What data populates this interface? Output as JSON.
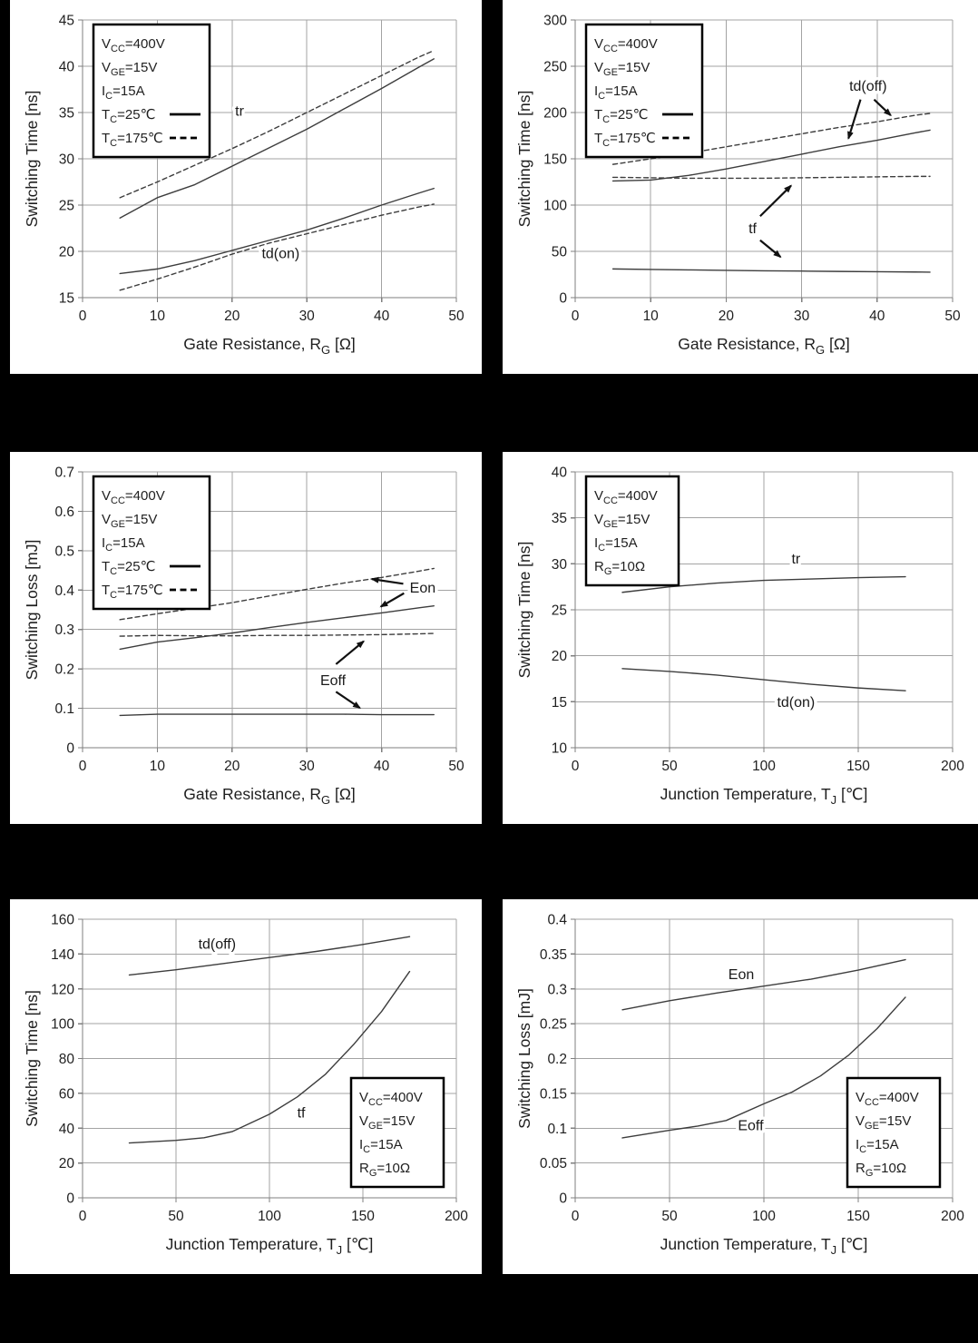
{
  "page": {
    "background": "#000000",
    "panel_background": "#ffffff"
  },
  "style": {
    "grid_color": "#a3a3a3",
    "axis_color": "#7f7f7f",
    "tick_text_color": "#1f1f1f",
    "curve_color": "#3d3d3d",
    "annotation_color": "#1a1a1a",
    "arrow_color": "#111111",
    "legend_border_color": "#000000",
    "legend_fill": "#ffffff"
  },
  "chart_data": [
    {
      "id": "switching-time-vs-rg-turn-on",
      "type": "line",
      "ylabel": "Switching Time [ns]",
      "xlabel": {
        "pre": "Gate Resistance, R",
        "sub": "G",
        "post": " [Ω]"
      },
      "xlim": [
        0,
        50
      ],
      "ylim": [
        15,
        45
      ],
      "xticks": [
        0,
        10,
        20,
        30,
        40,
        50
      ],
      "xtick_labels": [
        "0",
        "10",
        "20",
        "30",
        "40",
        "50"
      ],
      "yticks": [
        15,
        20,
        25,
        30,
        35,
        40,
        45
      ],
      "ytick_labels": [
        "15",
        "20",
        "25",
        "30",
        "35",
        "40",
        "45"
      ],
      "grid": true,
      "legend": {
        "position": "top-left",
        "lines": [
          {
            "pre": "V",
            "sub": "CC",
            "post": "=400V"
          },
          {
            "pre": "V",
            "sub": "GE",
            "post": "=15V"
          },
          {
            "pre": "I",
            "sub": "C",
            "post": "=15A"
          },
          {
            "pre": "T",
            "sub": "C",
            "post": "=25℃",
            "sample": "solid"
          },
          {
            "pre": "T",
            "sub": "C",
            "post": "=175℃",
            "sample": "dashed"
          }
        ]
      },
      "series": [
        {
          "id": "tr-tc25",
          "name": "tr @ Tc=25C",
          "style": "solid",
          "x": [
            5,
            10,
            15,
            20,
            25,
            30,
            35,
            40,
            45,
            47
          ],
          "y": [
            23.6,
            25.8,
            27.2,
            29.2,
            31.2,
            33.2,
            35.4,
            37.6,
            39.9,
            40.8
          ]
        },
        {
          "id": "tr-tc175",
          "name": "tr @ Tc=175C",
          "style": "dashed",
          "x": [
            5,
            10,
            15,
            20,
            25,
            30,
            35,
            40,
            45,
            47
          ],
          "y": [
            25.8,
            27.5,
            29.3,
            31.1,
            33.0,
            35.0,
            37.0,
            39.0,
            41.0,
            41.7
          ]
        },
        {
          "id": "tdon-tc25",
          "name": "td(on) @ Tc=25C",
          "style": "solid",
          "x": [
            5,
            10,
            15,
            20,
            25,
            30,
            35,
            40,
            45,
            47
          ],
          "y": [
            17.6,
            18.1,
            19.0,
            20.1,
            21.2,
            22.3,
            23.6,
            25.0,
            26.3,
            26.8
          ]
        },
        {
          "id": "tdon-tc175",
          "name": "td(on) @ Tc=175C",
          "style": "dashed",
          "x": [
            5,
            10,
            15,
            20,
            25,
            30,
            35,
            40,
            45,
            47
          ],
          "y": [
            15.8,
            17.0,
            18.3,
            19.7,
            20.9,
            21.9,
            22.9,
            23.9,
            24.8,
            25.1
          ]
        }
      ],
      "annotations": [
        {
          "text": "tr",
          "x": 21,
          "y": 35.2
        },
        {
          "text": "td(on)",
          "x": 26.5,
          "y": 19.8
        }
      ],
      "arrows": []
    },
    {
      "id": "switching-time-vs-rg-turn-off",
      "type": "line",
      "ylabel": "Switching Time [ns]",
      "xlabel": {
        "pre": "Gate Resistance, R",
        "sub": "G",
        "post": " [Ω]"
      },
      "xlim": [
        0,
        50
      ],
      "ylim": [
        0,
        300
      ],
      "xticks": [
        0,
        10,
        20,
        30,
        40,
        50
      ],
      "xtick_labels": [
        "0",
        "10",
        "20",
        "30",
        "40",
        "50"
      ],
      "yticks": [
        0,
        50,
        100,
        150,
        200,
        250,
        300
      ],
      "ytick_labels": [
        "0",
        "50",
        "100",
        "150",
        "200",
        "250",
        "300"
      ],
      "grid": true,
      "legend": {
        "position": "top-left",
        "lines": [
          {
            "pre": "V",
            "sub": "CC",
            "post": "=400V"
          },
          {
            "pre": "V",
            "sub": "GE",
            "post": "=15V"
          },
          {
            "pre": "I",
            "sub": "C",
            "post": "=15A"
          },
          {
            "pre": "T",
            "sub": "C",
            "post": "=25℃",
            "sample": "solid"
          },
          {
            "pre": "T",
            "sub": "C",
            "post": "=175℃",
            "sample": "dashed"
          }
        ]
      },
      "series": [
        {
          "id": "tdoff-tc25",
          "name": "td(off) @ Tc=25C",
          "style": "solid",
          "x": [
            5,
            10,
            15,
            20,
            25,
            30,
            35,
            40,
            45,
            47
          ],
          "y": [
            126,
            127,
            132,
            139,
            147,
            155,
            163,
            170,
            178,
            181
          ]
        },
        {
          "id": "tdoff-tc175",
          "name": "td(off) @ Tc=175C",
          "style": "dashed",
          "x": [
            5,
            10,
            15,
            20,
            25,
            30,
            35,
            40,
            45,
            47
          ],
          "y": [
            144,
            150,
            156,
            163,
            170,
            177,
            184,
            190,
            197,
            199
          ]
        },
        {
          "id": "tf-tc175",
          "name": "tf @ Tc=175C",
          "style": "dashed",
          "x": [
            5,
            10,
            15,
            20,
            25,
            30,
            35,
            40,
            45,
            47
          ],
          "y": [
            130,
            129.5,
            129,
            129,
            129,
            129.5,
            130,
            130.5,
            131,
            131
          ]
        },
        {
          "id": "tf-tc25",
          "name": "tf @ Tc=25C",
          "style": "solid",
          "x": [
            5,
            10,
            15,
            20,
            25,
            30,
            35,
            40,
            45,
            47
          ],
          "y": [
            31,
            30.5,
            30,
            29.5,
            29,
            28.7,
            28.3,
            28,
            27.7,
            27.5
          ]
        }
      ],
      "annotations": [
        {
          "text": "td(off)",
          "x": 38.8,
          "y": 229
        },
        {
          "text": "tf",
          "x": 23.5,
          "y": 75
        }
      ],
      "arrows": [
        {
          "x1": 37.8,
          "y1": 214,
          "x2": 36.2,
          "y2": 172
        },
        {
          "x1": 39.6,
          "y1": 214,
          "x2": 41.8,
          "y2": 197
        },
        {
          "x1": 24.5,
          "y1": 88,
          "x2": 28.6,
          "y2": 121
        },
        {
          "x1": 24.5,
          "y1": 62,
          "x2": 27.2,
          "y2": 44
        }
      ]
    },
    {
      "id": "switching-loss-vs-rg",
      "type": "line",
      "ylabel": "Switching Loss [mJ]",
      "xlabel": {
        "pre": "Gate Resistance, R",
        "sub": "G",
        "post": " [Ω]"
      },
      "xlim": [
        0,
        50
      ],
      "ylim": [
        0,
        0.7
      ],
      "xticks": [
        0,
        10,
        20,
        30,
        40,
        50
      ],
      "xtick_labels": [
        "0",
        "10",
        "20",
        "30",
        "40",
        "50"
      ],
      "yticks": [
        0,
        0.1,
        0.2,
        0.3,
        0.4,
        0.5,
        0.6,
        0.7
      ],
      "ytick_labels": [
        "0",
        "0.1",
        "0.2",
        "0.3",
        "0.4",
        "0.5",
        "0.6",
        "0.7"
      ],
      "grid": true,
      "legend": {
        "position": "top-left",
        "lines": [
          {
            "pre": "V",
            "sub": "CC",
            "post": "=400V"
          },
          {
            "pre": "V",
            "sub": "GE",
            "post": "=15V"
          },
          {
            "pre": "I",
            "sub": "C",
            "post": "=15A"
          },
          {
            "pre": "T",
            "sub": "C",
            "post": "=25℃",
            "sample": "solid"
          },
          {
            "pre": "T",
            "sub": "C",
            "post": "=175℃",
            "sample": "dashed"
          }
        ]
      },
      "series": [
        {
          "id": "eon-tc175",
          "name": "Eon @ Tc=175C",
          "style": "dashed",
          "x": [
            5,
            10,
            15,
            20,
            25,
            30,
            35,
            40,
            45,
            47
          ],
          "y": [
            0.325,
            0.34,
            0.354,
            0.368,
            0.385,
            0.402,
            0.418,
            0.432,
            0.448,
            0.455
          ]
        },
        {
          "id": "eon-tc25",
          "name": "Eon @ Tc=25C",
          "style": "solid",
          "x": [
            5,
            10,
            15,
            20,
            25,
            30,
            35,
            40,
            45,
            47
          ],
          "y": [
            0.25,
            0.268,
            0.279,
            0.291,
            0.305,
            0.318,
            0.33,
            0.342,
            0.355,
            0.36
          ]
        },
        {
          "id": "eoff-tc175",
          "name": "Eoff @ Tc=175C",
          "style": "dashed",
          "x": [
            5,
            10,
            15,
            20,
            25,
            30,
            35,
            40,
            45,
            47
          ],
          "y": [
            0.283,
            0.285,
            0.284,
            0.284,
            0.285,
            0.285,
            0.286,
            0.287,
            0.289,
            0.29
          ]
        },
        {
          "id": "eoff-tc25",
          "name": "Eoff @ Tc=25C",
          "style": "solid",
          "x": [
            5,
            10,
            15,
            20,
            25,
            30,
            35,
            40,
            45,
            47
          ],
          "y": [
            0.082,
            0.085,
            0.085,
            0.085,
            0.085,
            0.085,
            0.085,
            0.084,
            0.084,
            0.084
          ]
        }
      ],
      "annotations": [
        {
          "text": "Eon",
          "x": 45.5,
          "y": 0.406
        },
        {
          "text": "Eoff",
          "x": 33.5,
          "y": 0.172
        }
      ],
      "arrows": [
        {
          "x1": 42.9,
          "y1": 0.416,
          "x2": 38.7,
          "y2": 0.428
        },
        {
          "x1": 43.0,
          "y1": 0.392,
          "x2": 39.9,
          "y2": 0.358
        },
        {
          "x1": 33.9,
          "y1": 0.212,
          "x2": 37.6,
          "y2": 0.27
        },
        {
          "x1": 33.9,
          "y1": 0.142,
          "x2": 37.1,
          "y2": 0.101
        }
      ]
    },
    {
      "id": "switching-time-vs-tj-turn-on",
      "type": "line",
      "ylabel": "Switching Time [ns]",
      "xlabel": {
        "pre": "Junction Temperature, T",
        "sub": "J",
        "post": " [℃]"
      },
      "xlim": [
        0,
        200
      ],
      "ylim": [
        10,
        40
      ],
      "xticks": [
        0,
        50,
        100,
        150,
        200
      ],
      "xtick_labels": [
        "0",
        "50",
        "100",
        "150",
        "200"
      ],
      "yticks": [
        10,
        15,
        20,
        25,
        30,
        35,
        40
      ],
      "ytick_labels": [
        "10",
        "15",
        "20",
        "25",
        "30",
        "35",
        "40"
      ],
      "grid": true,
      "legend": {
        "position": "top-left",
        "lines": [
          {
            "pre": "V",
            "sub": "CC",
            "post": "=400V"
          },
          {
            "pre": "V",
            "sub": "GE",
            "post": "=15V"
          },
          {
            "pre": "I",
            "sub": "C",
            "post": "=15A"
          },
          {
            "pre": "R",
            "sub": "G",
            "post": "=10Ω"
          }
        ]
      },
      "series": [
        {
          "id": "tr",
          "name": "tr",
          "style": "solid",
          "x": [
            25,
            50,
            75,
            100,
            125,
            150,
            175
          ],
          "y": [
            26.9,
            27.5,
            27.9,
            28.2,
            28.35,
            28.5,
            28.6
          ]
        },
        {
          "id": "tdon",
          "name": "td(on)",
          "style": "solid",
          "x": [
            25,
            50,
            75,
            100,
            125,
            150,
            175
          ],
          "y": [
            18.6,
            18.3,
            17.9,
            17.4,
            16.9,
            16.5,
            16.2
          ]
        }
      ],
      "annotations": [
        {
          "text": "tr",
          "x": 117,
          "y": 30.6
        },
        {
          "text": "td(on)",
          "x": 117,
          "y": 15.0
        }
      ],
      "arrows": []
    },
    {
      "id": "switching-time-vs-tj-turn-off",
      "type": "line",
      "ylabel": "Switching Time [ns]",
      "xlabel": {
        "pre": "Junction Temperature, T",
        "sub": "J",
        "post": " [℃]"
      },
      "xlim": [
        0,
        200
      ],
      "ylim": [
        0,
        160
      ],
      "xticks": [
        0,
        50,
        100,
        150,
        200
      ],
      "xtick_labels": [
        "0",
        "50",
        "100",
        "150",
        "200"
      ],
      "yticks": [
        0,
        20,
        40,
        60,
        80,
        100,
        120,
        140,
        160
      ],
      "ytick_labels": [
        "0",
        "20",
        "40",
        "60",
        "80",
        "100",
        "120",
        "140",
        "160"
      ],
      "grid": true,
      "legend": {
        "position": "bottom-right",
        "lines": [
          {
            "pre": "V",
            "sub": "CC",
            "post": "=400V"
          },
          {
            "pre": "V",
            "sub": "GE",
            "post": "=15V"
          },
          {
            "pre": "I",
            "sub": "C",
            "post": "=15A"
          },
          {
            "pre": "R",
            "sub": "G",
            "post": "=10Ω"
          }
        ]
      },
      "series": [
        {
          "id": "tdoff",
          "name": "td(off)",
          "style": "solid",
          "x": [
            25,
            50,
            75,
            100,
            125,
            150,
            175
          ],
          "y": [
            128,
            131,
            134.5,
            138,
            141.5,
            145.5,
            150
          ]
        },
        {
          "id": "tf",
          "name": "tf",
          "style": "solid",
          "x": [
            25,
            50,
            65,
            80,
            100,
            115,
            130,
            145,
            160,
            175
          ],
          "y": [
            31.5,
            33,
            34.5,
            38,
            48,
            58,
            71,
            88,
            107,
            130
          ]
        }
      ],
      "annotations": [
        {
          "text": "td(off)",
          "x": 72,
          "y": 146
        },
        {
          "text": "tf",
          "x": 117,
          "y": 49
        }
      ],
      "arrows": []
    },
    {
      "id": "switching-loss-vs-tj",
      "type": "line",
      "ylabel": "Switching Loss [mJ]",
      "xlabel": {
        "pre": "Junction Temperature, T",
        "sub": "J",
        "post": " [℃]"
      },
      "xlim": [
        0,
        200
      ],
      "ylim": [
        0,
        0.4
      ],
      "xticks": [
        0,
        50,
        100,
        150,
        200
      ],
      "xtick_labels": [
        "0",
        "50",
        "100",
        "150",
        "200"
      ],
      "yticks": [
        0,
        0.05,
        0.1,
        0.15,
        0.2,
        0.25,
        0.3,
        0.35,
        0.4
      ],
      "ytick_labels": [
        "0",
        "0.05",
        "0.1",
        "0.15",
        "0.2",
        "0.25",
        "0.3",
        "0.35",
        "0.4"
      ],
      "grid": true,
      "legend": {
        "position": "bottom-right",
        "lines": [
          {
            "pre": "V",
            "sub": "CC",
            "post": "=400V"
          },
          {
            "pre": "V",
            "sub": "GE",
            "post": "=15V"
          },
          {
            "pre": "I",
            "sub": "C",
            "post": "=15A"
          },
          {
            "pre": "R",
            "sub": "G",
            "post": "=10Ω"
          }
        ]
      },
      "series": [
        {
          "id": "eon",
          "name": "Eon",
          "style": "solid",
          "x": [
            25,
            50,
            75,
            100,
            125,
            150,
            175
          ],
          "y": [
            0.27,
            0.283,
            0.294,
            0.304,
            0.314,
            0.327,
            0.342
          ]
        },
        {
          "id": "eoff",
          "name": "Eoff",
          "style": "solid",
          "x": [
            25,
            50,
            65,
            80,
            100,
            115,
            130,
            145,
            160,
            175
          ],
          "y": [
            0.086,
            0.097,
            0.103,
            0.111,
            0.135,
            0.152,
            0.175,
            0.205,
            0.243,
            0.288
          ]
        }
      ],
      "annotations": [
        {
          "text": "Eon",
          "x": 88,
          "y": 0.321
        },
        {
          "text": "Eoff",
          "x": 93,
          "y": 0.104
        }
      ],
      "arrows": []
    }
  ]
}
